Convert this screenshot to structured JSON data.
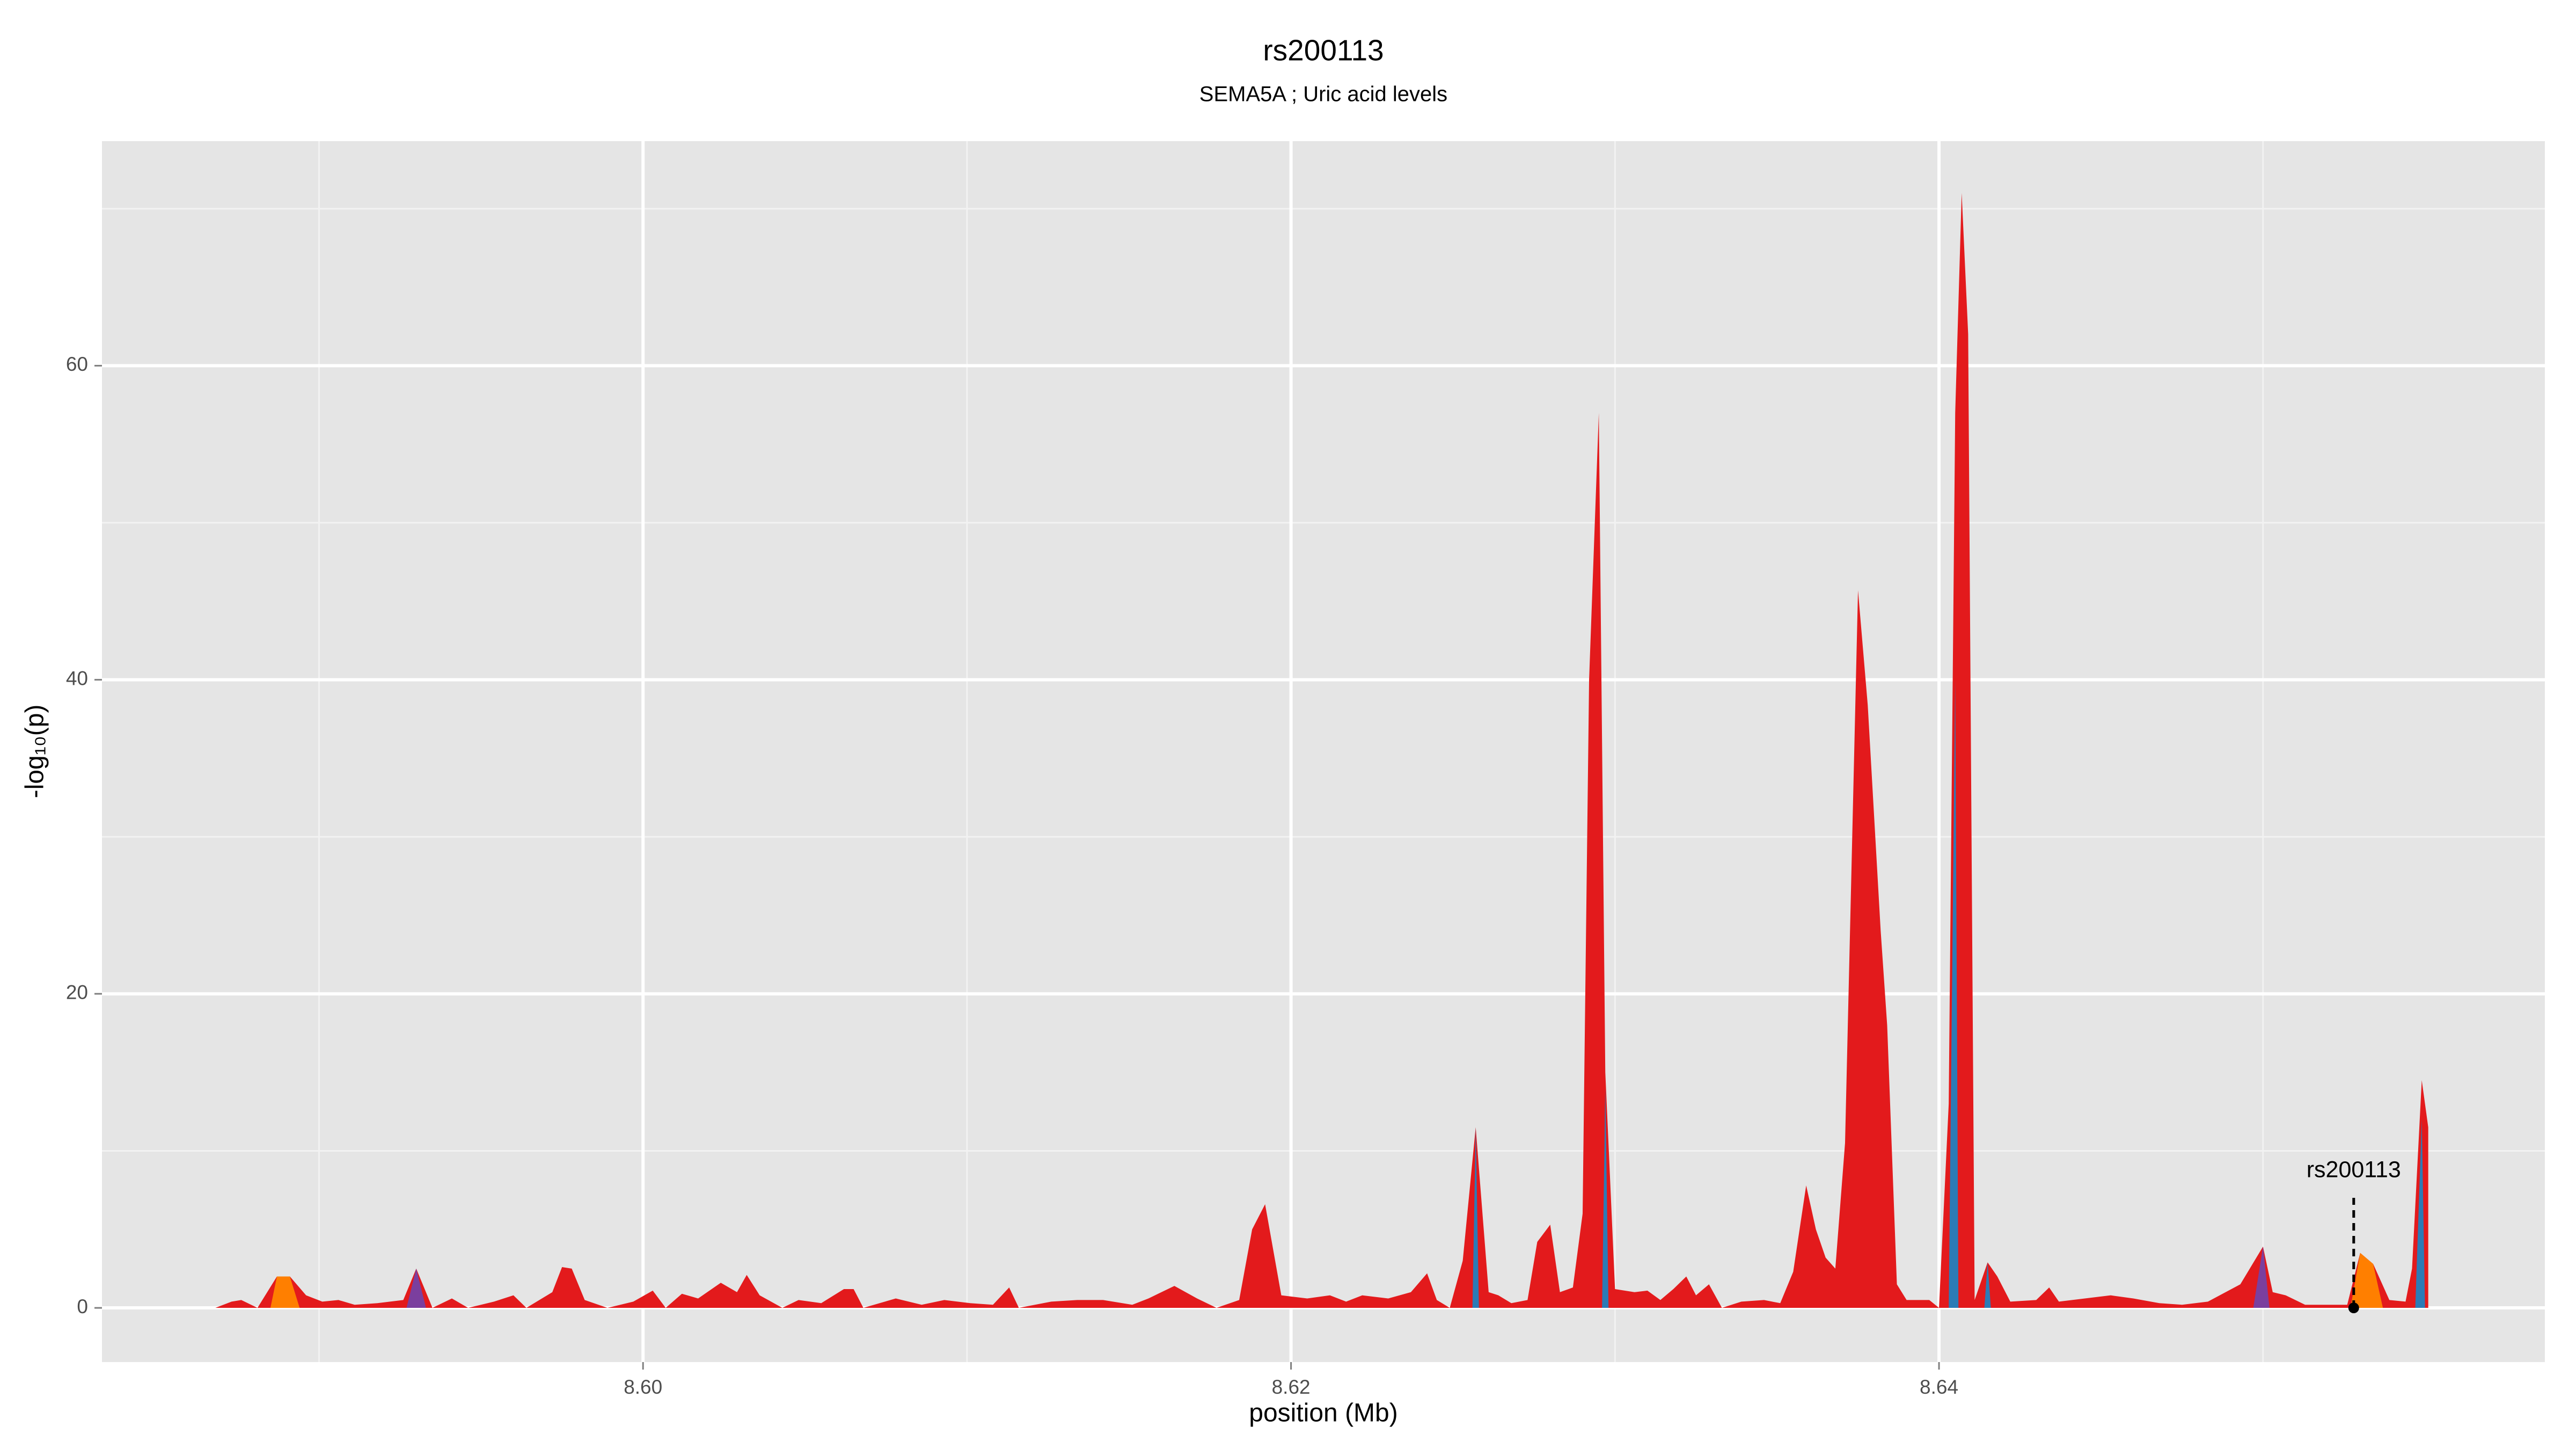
{
  "chart_data": {
    "type": "area",
    "title": "rs200113",
    "subtitle": "SEMA5A ; Uric acid levels",
    "x_label": "position (Mb)",
    "y_label": "-log₁₀(p)",
    "xlim": [
      8.5833,
      8.6587
    ],
    "ylim": [
      -3.45,
      74.3
    ],
    "xticks": [
      {
        "value": 8.6,
        "label": "8.60"
      },
      {
        "value": 8.62,
        "label": "8.62"
      },
      {
        "value": 8.64,
        "label": "8.64"
      }
    ],
    "xminorticks": [
      8.59,
      8.61,
      8.63,
      8.65
    ],
    "yticks": [
      0,
      20,
      40,
      60
    ],
    "yminorticks": [
      10,
      30,
      50,
      70
    ],
    "grid": true,
    "series": [
      {
        "color": "#e31a1c",
        "x": [
          8.5868,
          8.5873,
          8.5876,
          8.5881,
          8.5887,
          8.5891,
          8.5896,
          8.5901,
          8.5906,
          8.5911,
          8.5918,
          8.5926,
          8.593,
          8.5935,
          8.5941,
          8.5946,
          8.5954,
          8.596,
          8.5964,
          8.5972,
          8.5975,
          8.5978,
          8.5982,
          8.5989,
          8.5997,
          8.6003,
          8.6007,
          8.6012,
          8.6017,
          8.6024,
          8.6029,
          8.6032,
          8.6036,
          8.6043,
          8.6048,
          8.6055,
          8.6062,
          8.6065,
          8.6068,
          8.6078,
          8.6086,
          8.6093,
          8.6101,
          8.6108,
          8.6113,
          8.6116,
          8.6126,
          8.6134,
          8.6142,
          8.6151,
          8.6156,
          8.6164,
          8.6171,
          8.6177,
          8.6184,
          8.6188,
          8.6192,
          8.6197,
          8.6205,
          8.6212,
          8.6217,
          8.6222,
          8.623,
          8.6237,
          8.6242,
          8.6245,
          8.6249,
          8.6253,
          8.6257,
          8.6261,
          8.6264,
          8.6268,
          8.6273,
          8.6276,
          8.628,
          8.6283,
          8.6287,
          8.629,
          8.6292,
          8.6295,
          8.6297,
          8.63,
          8.6306,
          8.631,
          8.6314,
          8.6318,
          8.6322,
          8.6325,
          8.6329,
          8.6333,
          8.6339,
          8.6346,
          8.6351,
          8.6355,
          8.6359,
          8.6362,
          8.6365,
          8.6368,
          8.6371,
          8.6375,
          8.6378,
          8.6382,
          8.6384,
          8.6387,
          8.639,
          8.6397,
          8.64,
          8.6403,
          8.6405,
          8.6407,
          8.6409,
          8.6411,
          8.6415,
          8.6418,
          8.6422,
          8.643,
          8.6434,
          8.6437,
          8.6445,
          8.6453,
          8.646,
          8.6468,
          8.6475,
          8.6483,
          8.6493,
          8.65,
          8.6503,
          8.6507,
          8.6513,
          8.6521,
          8.6526,
          8.653,
          8.6534,
          8.6539,
          8.6544,
          8.6546,
          8.6549,
          8.6551
        ],
        "values": [
          0,
          0.4,
          0.5,
          0,
          2,
          2,
          0.8,
          0.4,
          0.5,
          0.2,
          0.3,
          0.5,
          2.5,
          0,
          0.6,
          0,
          0.4,
          0.8,
          0,
          1,
          2.6,
          2.5,
          0.5,
          0,
          0.4,
          1.1,
          0,
          0.9,
          0.6,
          1.6,
          1,
          2.1,
          0.8,
          0,
          0.5,
          0.3,
          1.2,
          1.2,
          0,
          0.6,
          0.2,
          0.5,
          0.3,
          0.2,
          1.3,
          0,
          0.4,
          0.5,
          0.5,
          0.2,
          0.6,
          1.4,
          0.6,
          0,
          0.5,
          5,
          6.6,
          0.8,
          0.6,
          0.8,
          0.4,
          0.8,
          0.6,
          1,
          2.2,
          0.5,
          0,
          3,
          11.5,
          1,
          0.8,
          0.3,
          0.5,
          4.2,
          5.3,
          1,
          1.3,
          6,
          40,
          57,
          15,
          1.2,
          1,
          1.1,
          0.5,
          1.2,
          2,
          0.8,
          1.5,
          0,
          0.4,
          0.5,
          0.3,
          2.3,
          7.8,
          5,
          3.2,
          2.5,
          10.5,
          45.7,
          38.4,
          24,
          18,
          1.5,
          0.5,
          0.5,
          0,
          13,
          57,
          71,
          62,
          0.5,
          2.9,
          2,
          0.4,
          0.5,
          1.3,
          0.4,
          0.6,
          0.8,
          0.6,
          0.3,
          0.2,
          0.4,
          1.5,
          3.9,
          1,
          0.8,
          0.2,
          0.2,
          0.2,
          3.5,
          2.8,
          0.5,
          0.4,
          2.5,
          14.5,
          11.5
        ]
      },
      {
        "color": "#7b3f9e",
        "x": [
          8.5927,
          8.593,
          8.5933,
          8.6497,
          8.65,
          8.6502
        ],
        "values": [
          0,
          2.5,
          0,
          0,
          3.9,
          0
        ]
      },
      {
        "color": "#ff7f00",
        "x": [
          8.5885,
          8.5887,
          8.5891,
          8.5894,
          8.6527,
          8.653,
          8.6534,
          8.6537
        ],
        "values": [
          0,
          2,
          2,
          0,
          0,
          3.5,
          2.8,
          0
        ]
      },
      {
        "color": "#2c7bb6",
        "x": [
          8.6256,
          8.6257,
          8.6258,
          8.6296,
          8.6297,
          8.6298,
          8.6403,
          8.6405,
          8.6406,
          8.6414,
          8.6415,
          8.6416,
          8.6547,
          8.6549,
          8.655
        ],
        "values": [
          0,
          11.5,
          0,
          0,
          14,
          0,
          0,
          40,
          0,
          0,
          2.9,
          0,
          0,
          12,
          0
        ]
      }
    ],
    "annotation": {
      "text": "rs200113",
      "x": 8.6528,
      "y": 0
    }
  }
}
